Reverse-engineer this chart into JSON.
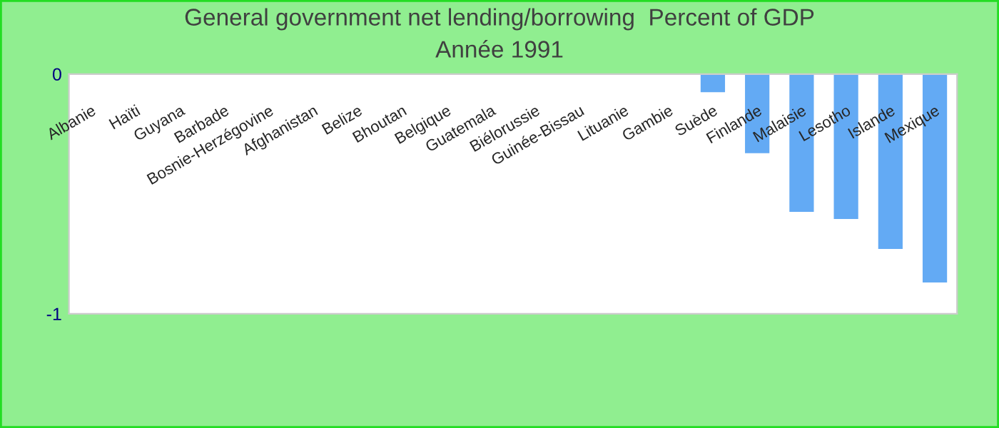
{
  "chart_data": {
    "type": "bar",
    "title": "General government net lending/borrowing  Percent of GDP",
    "subtitle": "Année 1991",
    "categories": [
      "Albanie",
      "Haïti",
      "Guyana",
      "Barbade",
      "Bosnie-Herzégovine",
      "Afghanistan",
      "Belize",
      "Bhoutan",
      "Belgique",
      "Guatemala",
      "Biélorussie",
      "Guinée-Bissau",
      "Lituanie",
      "Gambie",
      "Suède",
      "Finlande",
      "Malaisie",
      "Lesotho",
      "Islande",
      "Mexique"
    ],
    "values": [
      0,
      0,
      0,
      0,
      0,
      0,
      0,
      0,
      0,
      0,
      0,
      0,
      0,
      0,
      -0.076,
      -0.33,
      -0.575,
      -0.605,
      -0.73,
      -0.87
    ],
    "color": "#63aaf4",
    "ylim": [
      -1,
      0
    ],
    "yticks": [
      -1,
      0
    ],
    "grid": false,
    "legend": false
  }
}
